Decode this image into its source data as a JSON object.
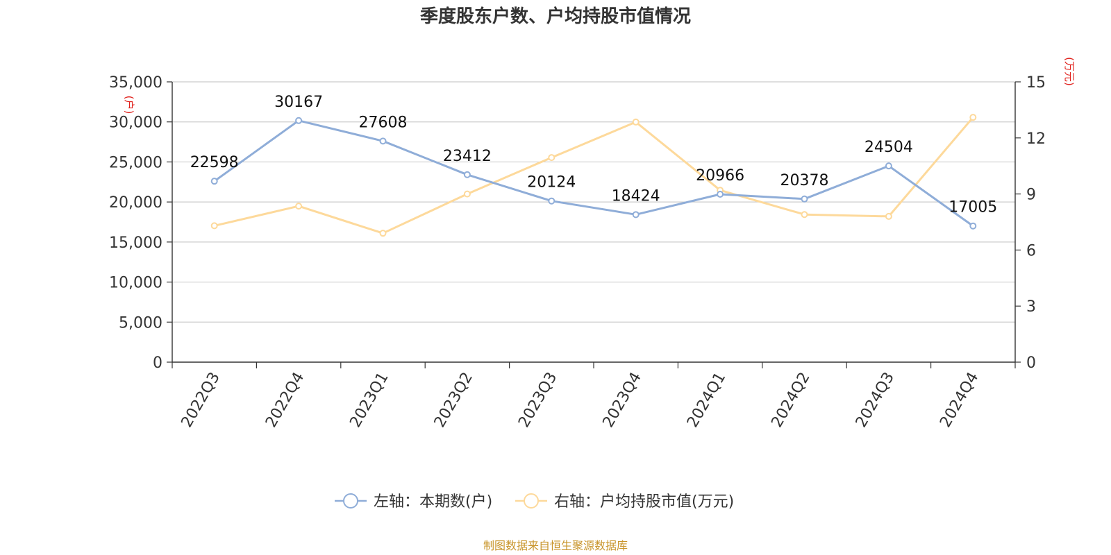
{
  "chart_data": {
    "type": "line",
    "title": "季度股东户数、户均持股市值情况",
    "categories": [
      "2022Q3",
      "2022Q4",
      "2023Q1",
      "2023Q2",
      "2023Q3",
      "2023Q4",
      "2024Q1",
      "2024Q2",
      "2024Q3",
      "2024Q4"
    ],
    "series": [
      {
        "name": "左轴：本期数(户)",
        "axis": "left",
        "color": "#8fadd8",
        "values": [
          22598,
          30167,
          27608,
          23412,
          20124,
          18424,
          20966,
          20378,
          24504,
          17005
        ],
        "show_labels": true
      },
      {
        "name": "右轴：户均持股市值(万元)",
        "axis": "right",
        "color": "#fdd99b",
        "values": [
          7.3,
          8.35,
          6.9,
          9.0,
          10.95,
          12.85,
          9.2,
          7.9,
          7.8,
          13.1
        ],
        "show_labels": false
      }
    ],
    "left_axis": {
      "unit": "(户)",
      "ylim": [
        0,
        35000
      ],
      "ticks": [
        0,
        5000,
        10000,
        15000,
        20000,
        25000,
        30000,
        35000
      ],
      "tick_labels": [
        "0",
        "5,000",
        "10,000",
        "15,000",
        "20,000",
        "25,000",
        "30,000",
        "35,000"
      ]
    },
    "right_axis": {
      "unit": "(万元)",
      "ylim": [
        0,
        15
      ],
      "ticks": [
        0,
        3,
        6,
        9,
        12,
        15
      ],
      "tick_labels": [
        "0",
        "3",
        "6",
        "9",
        "12",
        "15"
      ]
    },
    "grid": true,
    "legend_position": "bottom-center",
    "source": "制图数据来自恒生聚源数据库"
  }
}
